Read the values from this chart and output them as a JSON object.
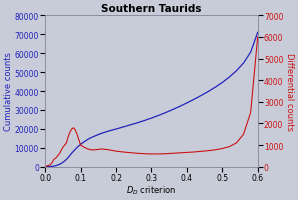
{
  "title": "Southern Taurids",
  "xlabel": "D_D criterion",
  "ylabel_left": "Cumulative counts",
  "ylabel_right": "Differential counts",
  "xlim": [
    0.0,
    0.6
  ],
  "ylim_left": [
    0,
    80000
  ],
  "ylim_right": [
    0,
    7000
  ],
  "yticks_left": [
    0,
    10000,
    20000,
    30000,
    40000,
    50000,
    60000,
    70000,
    80000
  ],
  "yticks_right": [
    0,
    1000,
    2000,
    3000,
    4000,
    5000,
    6000,
    7000
  ],
  "xticks": [
    0.0,
    0.1,
    0.2,
    0.3,
    0.4,
    0.5,
    0.6
  ],
  "color_cumulative": "#2222bb",
  "color_differential": "#cc1111",
  "background_color": "#c8ccd8",
  "plot_bg_color": "#c8ccd8",
  "title_fontsize": 7.5,
  "axis_label_fontsize": 6,
  "tick_fontsize": 5.5,
  "cumulative_x": [
    0.0,
    0.005,
    0.01,
    0.015,
    0.02,
    0.025,
    0.03,
    0.035,
    0.04,
    0.045,
    0.05,
    0.055,
    0.06,
    0.065,
    0.07,
    0.075,
    0.08,
    0.085,
    0.09,
    0.095,
    0.1,
    0.11,
    0.12,
    0.13,
    0.14,
    0.15,
    0.16,
    0.17,
    0.18,
    0.19,
    0.2,
    0.22,
    0.24,
    0.26,
    0.28,
    0.3,
    0.32,
    0.34,
    0.36,
    0.38,
    0.4,
    0.42,
    0.44,
    0.46,
    0.48,
    0.5,
    0.52,
    0.54,
    0.56,
    0.58,
    0.6
  ],
  "cumulative_y": [
    0,
    20,
    50,
    100,
    200,
    350,
    550,
    850,
    1200,
    1700,
    2300,
    3000,
    3900,
    4900,
    6000,
    7200,
    8200,
    9200,
    10200,
    11000,
    11800,
    13200,
    14400,
    15400,
    16200,
    17000,
    17700,
    18300,
    18900,
    19400,
    19900,
    21000,
    22100,
    23200,
    24400,
    25700,
    27100,
    28600,
    30200,
    31900,
    33700,
    35600,
    37600,
    39700,
    42000,
    44500,
    47400,
    50700,
    54800,
    60500,
    71000
  ],
  "differential_x": [
    0.0,
    0.005,
    0.01,
    0.015,
    0.02,
    0.025,
    0.03,
    0.035,
    0.04,
    0.045,
    0.05,
    0.055,
    0.06,
    0.065,
    0.07,
    0.075,
    0.08,
    0.085,
    0.09,
    0.095,
    0.1,
    0.11,
    0.12,
    0.13,
    0.14,
    0.15,
    0.16,
    0.17,
    0.18,
    0.19,
    0.2,
    0.22,
    0.24,
    0.26,
    0.28,
    0.3,
    0.32,
    0.34,
    0.36,
    0.38,
    0.4,
    0.42,
    0.44,
    0.46,
    0.48,
    0.5,
    0.52,
    0.54,
    0.56,
    0.58,
    0.6
  ],
  "differential_y": [
    0,
    40,
    60,
    100,
    200,
    350,
    400,
    500,
    600,
    750,
    900,
    1000,
    1100,
    1400,
    1600,
    1750,
    1800,
    1700,
    1500,
    1250,
    1000,
    900,
    820,
    780,
    780,
    800,
    820,
    800,
    780,
    750,
    720,
    680,
    650,
    620,
    600,
    590,
    590,
    600,
    620,
    640,
    660,
    680,
    710,
    740,
    780,
    840,
    930,
    1100,
    1500,
    2500,
    6000
  ]
}
